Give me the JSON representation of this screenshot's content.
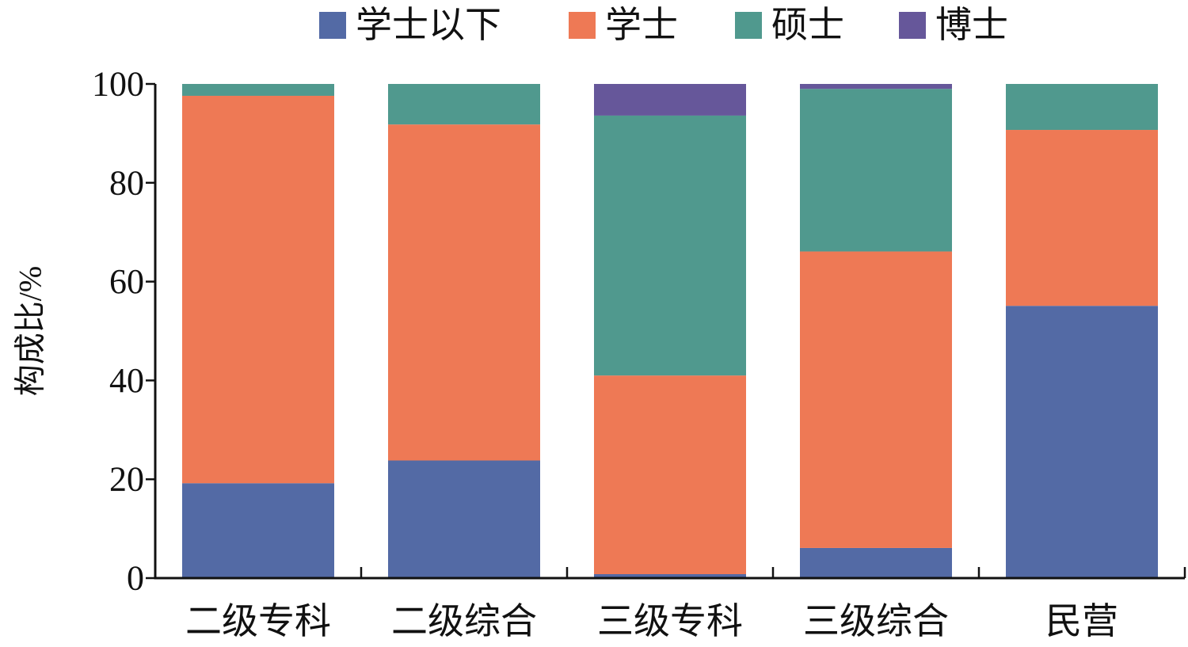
{
  "chart_data": {
    "type": "bar",
    "stacked": true,
    "title": "",
    "xlabel": "",
    "ylabel": "构成比/%",
    "ylim": [
      0,
      100
    ],
    "yticks": [
      0,
      20,
      40,
      60,
      80,
      100
    ],
    "grid": false,
    "legend_position": "top-center",
    "categories": [
      "二级专科",
      "二级综合",
      "三级专科",
      "三级综合",
      "民营"
    ],
    "series": [
      {
        "name": "学士以下",
        "color": "#536AA5",
        "values": [
          19.2,
          23.8,
          0.8,
          6.1,
          55.1
        ]
      },
      {
        "name": "学士",
        "color": "#EE7955",
        "values": [
          78.4,
          68.0,
          40.2,
          60.0,
          35.6
        ]
      },
      {
        "name": "硕士",
        "color": "#50998E",
        "values": [
          2.4,
          8.2,
          52.6,
          32.9,
          9.3
        ]
      },
      {
        "name": "博士",
        "color": "#66579A",
        "values": [
          0,
          0,
          6.4,
          1.0,
          0
        ]
      }
    ]
  }
}
